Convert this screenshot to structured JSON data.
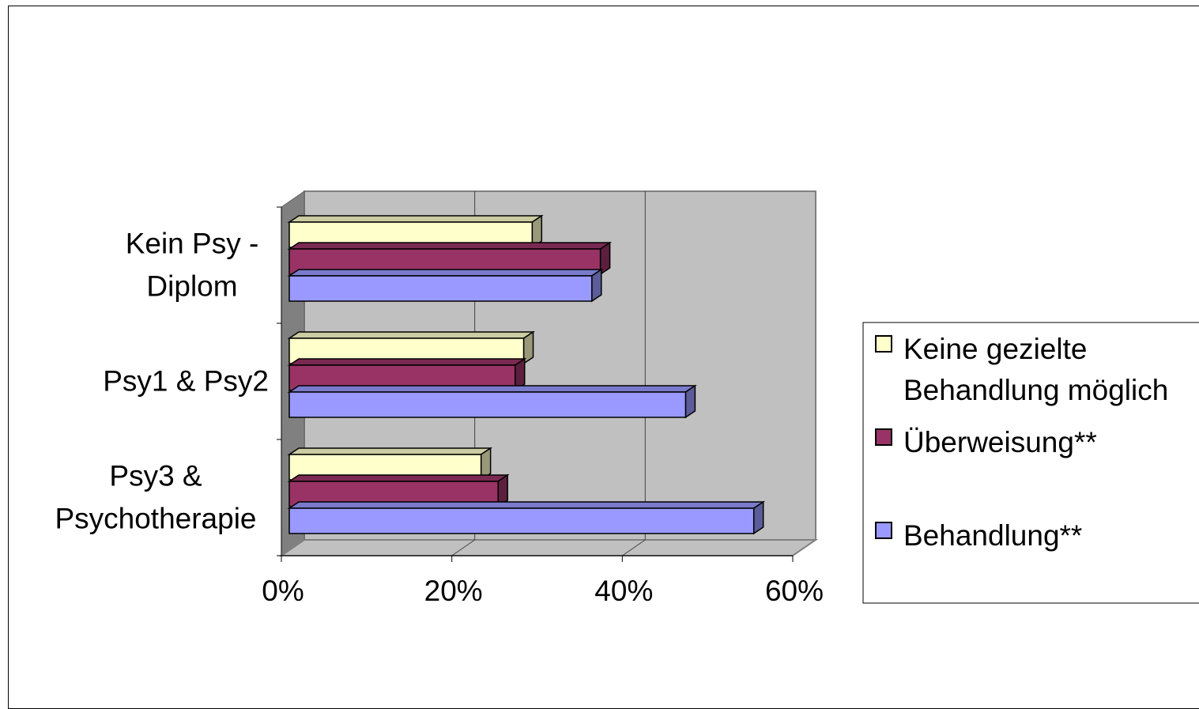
{
  "chart_data": {
    "type": "bar",
    "orientation": "horizontal",
    "style": "3d",
    "categories": [
      "Kein Psy - Diplom",
      "Psy1 & Psy2",
      "Psy3 & Psychotherapie"
    ],
    "category_label_lines": [
      [
        "Kein Psy -",
        "Diplom"
      ],
      [
        "Psy1 & Psy2"
      ],
      [
        "Psy3 &",
        "Psychotherapie"
      ]
    ],
    "series": [
      {
        "name": "Keine gezielte Behandlung möglich",
        "legend_lines": [
          "Keine gezielte",
          "Behandlung möglich"
        ],
        "color": "#FFFFCC",
        "values": [
          28.5,
          27.5,
          22.5
        ]
      },
      {
        "name": "Überweisung**",
        "legend_lines": [
          "Überweisung**"
        ],
        "color": "#993366",
        "values": [
          36.5,
          26.5,
          24.5
        ]
      },
      {
        "name": "Behandlung**",
        "legend_lines": [
          "Behandlung**"
        ],
        "color": "#9999FF",
        "values": [
          35.5,
          46.5,
          54.5
        ]
      }
    ],
    "xlim": [
      0,
      60
    ],
    "xticks": [
      "0%",
      "20%",
      "40%",
      "60%"
    ],
    "xtick_values": [
      0,
      20,
      40,
      60
    ],
    "grid": true,
    "legend_position": "right",
    "wall_color": "#C0C0C0",
    "floor_color": "#808080"
  }
}
